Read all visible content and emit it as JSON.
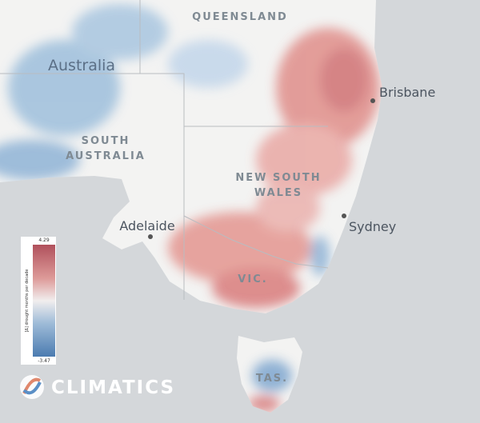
{
  "map": {
    "country_label": "Australia",
    "regions": [
      {
        "lines": [
          "QUEENSLAND"
        ]
      },
      {
        "lines": [
          "SOUTH",
          "AUSTRALIA"
        ]
      },
      {
        "lines": [
          "NEW SOUTH",
          "WALES"
        ]
      },
      {
        "lines": [
          "VIC."
        ]
      },
      {
        "lines": [
          "TAS."
        ]
      }
    ],
    "cities": [
      "Brisbane",
      "Sydney",
      "Adelaide"
    ],
    "legend": {
      "title": "[Δ] drought months per decade",
      "max": 4.29,
      "min": -3.47
    },
    "brand": "CLIMATICS"
  }
}
